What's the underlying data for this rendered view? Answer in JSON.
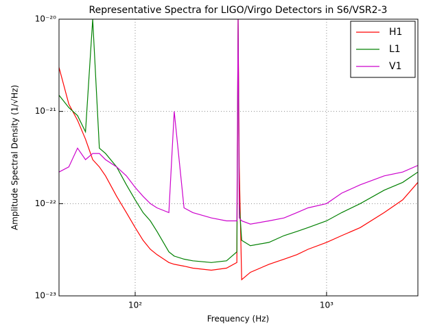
{
  "chart_data": {
    "type": "line",
    "title": "Representative Spectra for LIGO/Virgo Detectors in S6/VSR2-3",
    "xlabel": "Frequency (Hz)",
    "ylabel": "Amplitude Spectral Density (1/√Hz)",
    "xscale": "log",
    "yscale": "log",
    "grid": true,
    "legend": "upper right",
    "xlim": [
      40,
      3000
    ],
    "ylim": [
      1e-23,
      1e-20
    ],
    "xticks": [
      {
        "value": 100,
        "label": "10²"
      },
      {
        "value": 1000,
        "label": "10³"
      }
    ],
    "yticks": [
      {
        "value": 1e-23,
        "label": "10⁻²³"
      },
      {
        "value": 1e-22,
        "label": "10⁻²²"
      },
      {
        "value": 1e-21,
        "label": "10⁻²¹"
      },
      {
        "value": 1e-20,
        "label": "10⁻²⁰"
      }
    ],
    "x": [
      40,
      45,
      50,
      55,
      60,
      65,
      70,
      80,
      90,
      100,
      110,
      120,
      130,
      150,
      160,
      180,
      200,
      250,
      300,
      340,
      345,
      350,
      360,
      400,
      500,
      600,
      700,
      800,
      1000,
      1200,
      1500,
      2000,
      2500,
      3000
    ],
    "series": [
      {
        "name": "H1",
        "color": "#ff0000",
        "values": [
          3e-21,
          1.2e-21,
          8e-22,
          5e-22,
          3e-22,
          2.5e-22,
          2e-22,
          1.2e-22,
          8e-23,
          5.5e-23,
          4e-23,
          3.2e-23,
          2.8e-23,
          2.3e-23,
          2.2e-23,
          2.1e-23,
          2e-23,
          1.9e-23,
          2e-23,
          2.3e-23,
          1e-20,
          2.5e-22,
          1.5e-23,
          1.8e-23,
          2.2e-23,
          2.5e-23,
          2.8e-23,
          3.2e-23,
          3.8e-23,
          4.5e-23,
          5.5e-23,
          8e-23,
          1.1e-22,
          1.7e-22
        ]
      },
      {
        "name": "L1",
        "color": "#008000",
        "values": [
          1.5e-21,
          1.1e-21,
          9e-22,
          6e-22,
          1e-20,
          4e-22,
          3.5e-22,
          2.5e-22,
          1.6e-22,
          1.1e-22,
          8e-23,
          6.5e-23,
          5e-23,
          3e-23,
          2.7e-23,
          2.5e-23,
          2.4e-23,
          2.3e-23,
          2.4e-23,
          3e-23,
          1e-20,
          1e-22,
          4e-23,
          3.5e-23,
          3.8e-23,
          4.5e-23,
          5e-23,
          5.5e-23,
          6.5e-23,
          8e-23,
          1e-22,
          1.4e-22,
          1.7e-22,
          2.2e-22
        ]
      },
      {
        "name": "V1",
        "color": "#cc00cc",
        "values": [
          2.2e-22,
          2.5e-22,
          4e-22,
          3e-22,
          3.5e-22,
          3.5e-22,
          3e-22,
          2.5e-22,
          2e-22,
          1.5e-22,
          1.2e-22,
          1e-22,
          9e-23,
          8e-23,
          1e-21,
          9e-23,
          8e-23,
          7e-23,
          6.5e-23,
          6.5e-23,
          1e-20,
          7e-23,
          6.5e-23,
          6e-23,
          6.5e-23,
          7e-23,
          8e-23,
          9e-23,
          1e-22,
          1.3e-22,
          1.6e-22,
          2e-22,
          2.2e-22,
          2.6e-22
        ]
      }
    ]
  }
}
